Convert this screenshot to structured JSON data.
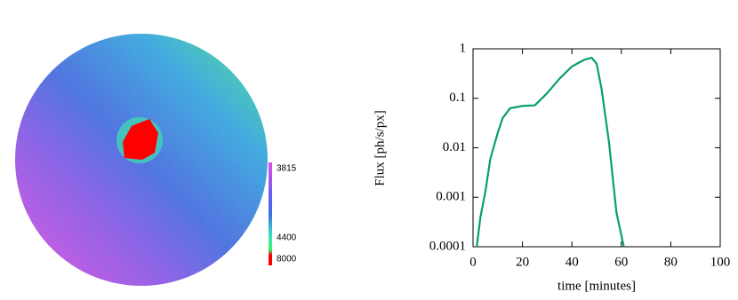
{
  "chart_data": [
    {
      "type": "heatmap",
      "colorbar_ticks": [
        3815,
        4400,
        8000
      ]
    },
    {
      "type": "line",
      "xlabel": "time [minutes]",
      "ylabel": "Flux [ph/s/px]",
      "x": [
        1.5,
        3,
        5,
        7,
        10,
        12,
        15,
        20,
        25,
        30,
        35,
        40,
        45,
        48,
        50,
        52,
        55,
        58,
        61
      ],
      "series": [
        {
          "color": "#079e73",
          "values": [
            0.0001,
            0.0004,
            0.0013,
            0.006,
            0.02,
            0.04,
            0.063,
            0.07,
            0.072,
            0.127,
            0.25,
            0.44,
            0.6,
            0.66,
            0.5,
            0.155,
            0.013,
            0.0005,
            0.0001
          ]
        }
      ],
      "xlim": [
        0,
        100
      ],
      "xticks": [
        0,
        20,
        40,
        60,
        80,
        100
      ],
      "ylim": [
        0.0001,
        1
      ],
      "yticks": [
        0.0001,
        0.001,
        0.01,
        0.1,
        1
      ],
      "log_y": true
    }
  ]
}
